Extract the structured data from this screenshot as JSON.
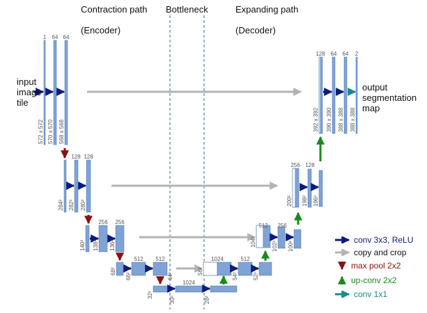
{
  "headers": {
    "contraction": "Contraction path",
    "encoder": "(Encoder)",
    "bottleneck": "Bottleneck",
    "expanding": "Expanding path",
    "decoder": "(Decoder)"
  },
  "input_label": [
    "input",
    "image",
    "tile"
  ],
  "output_label": [
    "output",
    "segmentation",
    "map"
  ],
  "legend": {
    "conv": "conv 3x3, ReLU",
    "copy": "copy and crop",
    "pool": "max pool 2x2",
    "upconv": "up-conv 2x2",
    "conv1": "conv 1x1"
  },
  "colors": {
    "block": "#7fa3d4",
    "block_border": "#4d76b3",
    "conv_arrow": "#0d1b7a",
    "copy_arrow": "#b3b3b3",
    "pool_arrow": "#8b1010",
    "upconv_arrow": "#1a8a1a",
    "conv1_arrow": "#1a8a8a",
    "divider": "#2f6f8f"
  },
  "levels": [
    {
      "name": "level-1-encoder",
      "blocks": [
        {
          "channels": "1",
          "size": "572 x 572"
        },
        {
          "channels": "64",
          "size": "570 x 570"
        },
        {
          "channels": "64",
          "size": "568 x 568"
        }
      ]
    },
    {
      "name": "level-2-encoder",
      "blocks": [
        {
          "channels": "",
          "size": "284²"
        },
        {
          "channels": "128",
          "size": "282²"
        },
        {
          "channels": "128",
          "size": "280²"
        }
      ]
    },
    {
      "name": "level-3-encoder",
      "blocks": [
        {
          "channels": "",
          "size": "140²"
        },
        {
          "channels": "256",
          "size": "138²"
        },
        {
          "channels": "256",
          "size": "136²"
        }
      ]
    },
    {
      "name": "level-4-encoder",
      "blocks": [
        {
          "channels": "",
          "size": "68²"
        },
        {
          "channels": "512",
          "size": "66²"
        },
        {
          "channels": "512",
          "size": "64²"
        }
      ]
    },
    {
      "name": "level-5-bottleneck",
      "blocks": [
        {
          "channels": "",
          "size": "32²"
        },
        {
          "channels": "1024",
          "size": "30²"
        },
        {
          "channels": "",
          "size": "28²"
        }
      ]
    },
    {
      "name": "level-4-decoder",
      "blocks": [
        {
          "channels": "1024",
          "size": "56²"
        },
        {
          "channels": "512",
          "size": "54²"
        },
        {
          "channels": "",
          "size": "52²"
        }
      ]
    },
    {
      "name": "level-3-decoder",
      "blocks": [
        {
          "channels": "512",
          "size": "104²"
        },
        {
          "channels": "256",
          "size": "102²"
        },
        {
          "channels": "",
          "size": "100²"
        }
      ]
    },
    {
      "name": "level-2-decoder",
      "blocks": [
        {
          "channels": "256",
          "size": "200²"
        },
        {
          "channels": "128",
          "size": "198²"
        },
        {
          "channels": "",
          "size": "196²"
        }
      ]
    },
    {
      "name": "level-1-decoder",
      "blocks": [
        {
          "channels": "128",
          "size": "392 x 392"
        },
        {
          "channels": "64",
          "size": "390 x 390"
        },
        {
          "channels": "64",
          "size": "388 x 388"
        },
        {
          "channels": "2",
          "size": "388 x 388"
        }
      ]
    }
  ]
}
